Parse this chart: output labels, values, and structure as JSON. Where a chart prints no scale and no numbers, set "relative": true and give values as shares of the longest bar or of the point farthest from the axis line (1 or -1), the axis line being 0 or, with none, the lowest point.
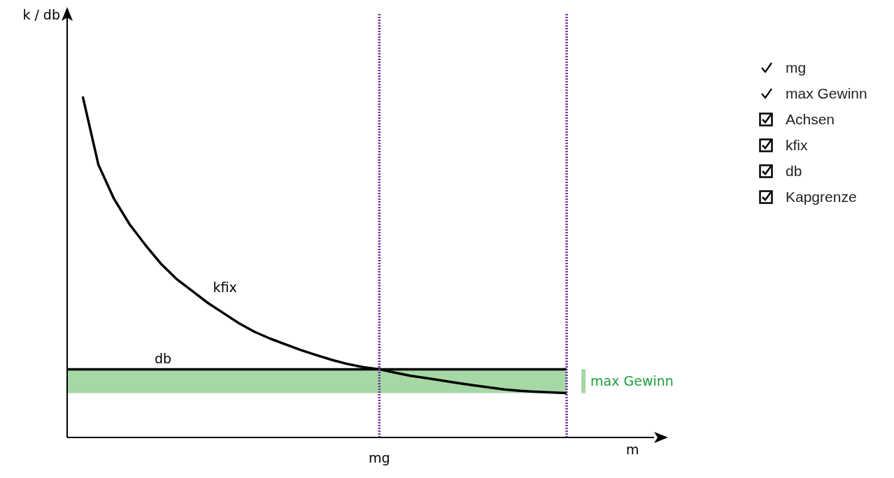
{
  "chart_data": {
    "type": "line",
    "relative": true,
    "xlabel": "m",
    "categories": [
      null,
      null,
      null,
      null,
      null,
      null,
      null,
      null,
      null,
      null,
      null,
      null,
      null,
      null,
      null,
      null,
      null,
      null,
      null,
      null,
      null,
      null,
      null,
      null,
      null,
      null,
      null,
      null,
      null,
      null,
      null,
      null,
      null
    ],
    "series": [
      {
        "name": "kfix",
        "color": "#000000",
        "values": [
          null,
          1,
          0.8,
          0.7,
          0.625,
          0.565,
          0.51,
          0.465,
          0.43,
          0.395,
          0.365,
          0.335,
          0.31,
          0.29,
          0.273,
          0.256,
          0.241,
          0.227,
          0.215,
          0.206,
          0.2,
          0.19,
          0.181,
          0.174,
          0.167,
          0.16,
          0.153,
          0.147,
          0.141,
          0.137,
          0.134,
          0.132,
          0.13
        ]
      },
      {
        "name": "db",
        "color": "#000000",
        "values": [
          0.2,
          0.2,
          0.2,
          0.2,
          0.2,
          0.2,
          0.2,
          0.2,
          0.2,
          0.2,
          0.2,
          0.2,
          0.2,
          0.2,
          0.2,
          0.2,
          0.2,
          0.2,
          0.2,
          0.2,
          0.2,
          0.2,
          0.2,
          0.2,
          0.2,
          0.2,
          0.2,
          0.2,
          0.2,
          0.2,
          0.2,
          0.2,
          0.2
        ]
      }
    ],
    "bands": [
      {
        "axis": "y",
        "from": 0.13,
        "to": 0.2,
        "label": "max Gewinn",
        "color": "#a5d8a5"
      }
    ],
    "annotations": [
      "mg",
      "max Gewinn",
      "Achsen",
      "kfix",
      "db",
      "Kapgrenze",
      {
        "text": "k / db"
      },
      {
        "text": "mg"
      }
    ],
    "line_style": "solid",
    "marker": "none",
    "grid": false,
    "legend": false
  }
}
